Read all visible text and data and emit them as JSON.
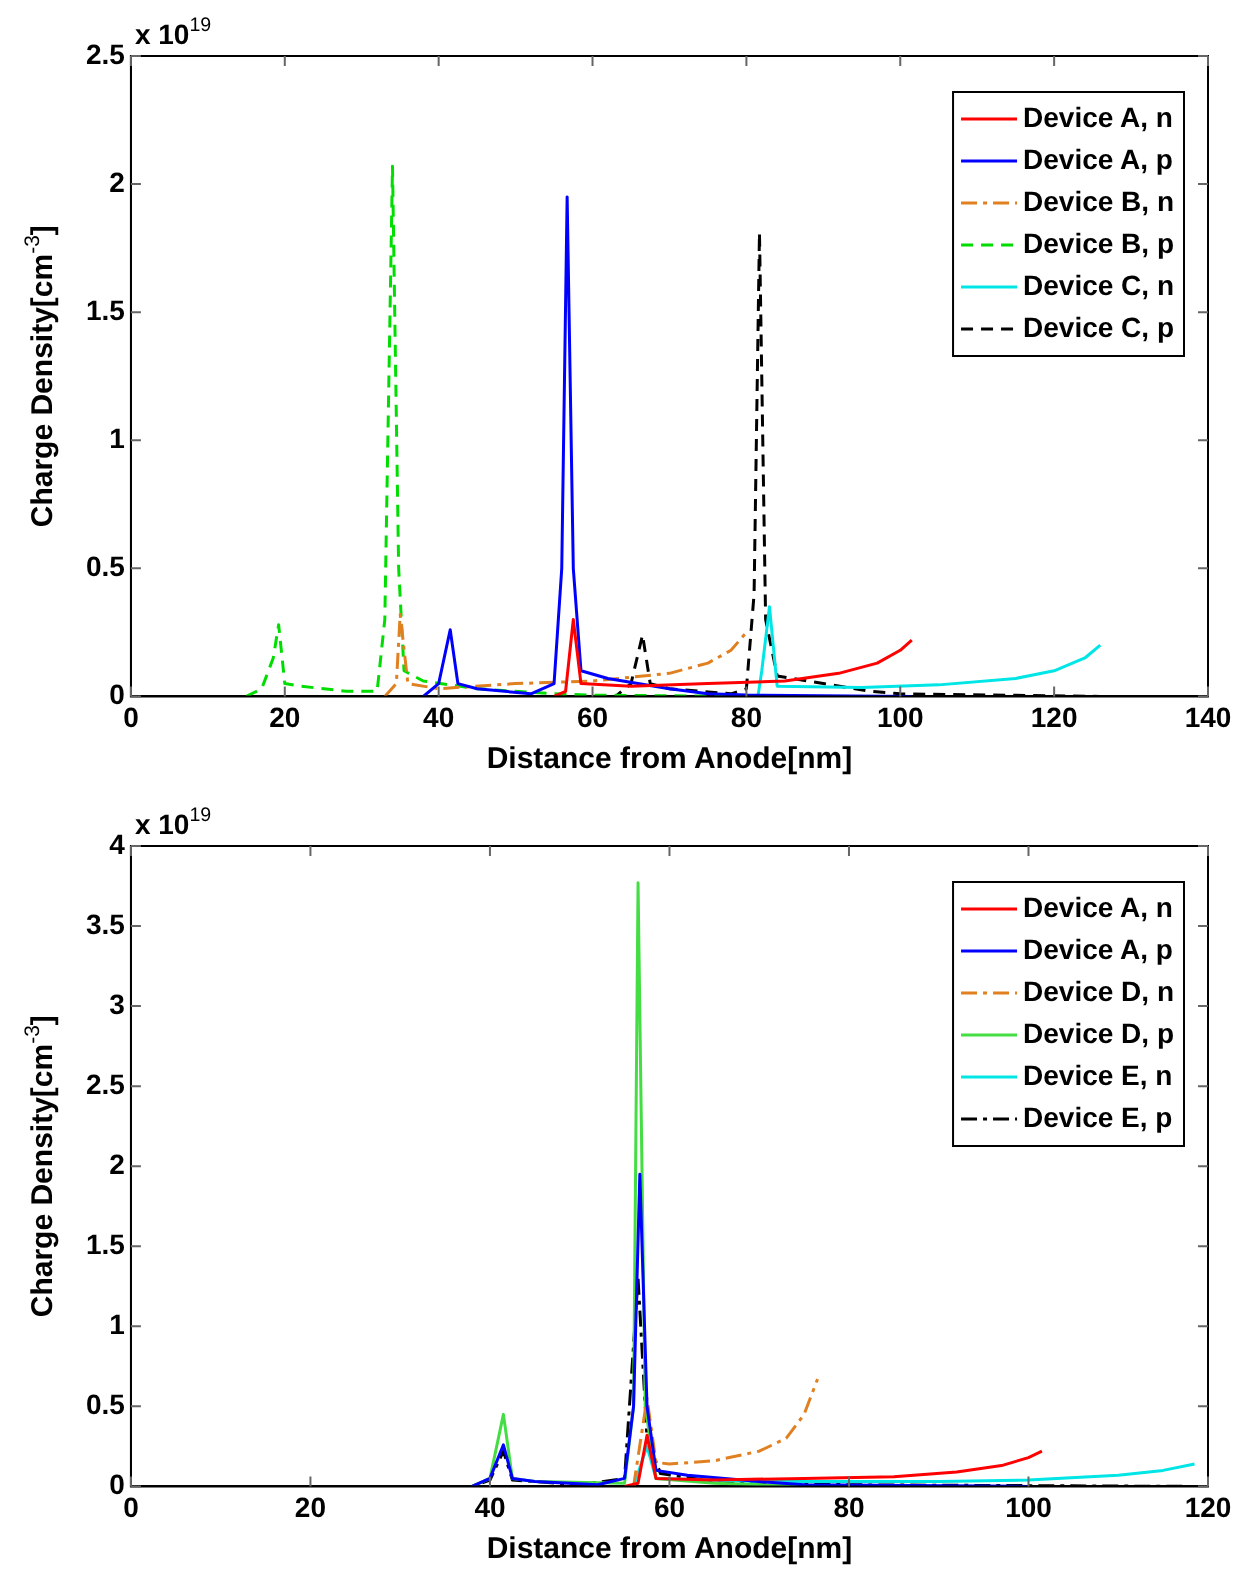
{
  "chart_data": [
    {
      "type": "line",
      "xlabel": "Distance from Anode[nm]",
      "ylabel": "Charge Density[cm$^{-3}$]",
      "annotations": [
        "x 10$^{19}$"
      ],
      "xlim": [
        0,
        140
      ],
      "xticks": [
        0,
        20,
        40,
        60,
        80,
        100,
        120,
        140
      ],
      "ylim": [
        0,
        2.5
      ],
      "yticks": [
        0,
        0.5,
        1,
        1.5,
        2,
        2.5
      ],
      "legend": "top right",
      "marker": "none",
      "series": [
        {
          "name": "Device A, n",
          "color": "#ff0000",
          "line_style": "solid",
          "x": [
            55,
            56.5,
            57.5,
            58.5,
            65,
            75,
            85,
            92,
            97,
            100,
            101.5
          ],
          "values": [
            0,
            0.02,
            0.3,
            0.05,
            0.04,
            0.05,
            0.06,
            0.09,
            0.13,
            0.18,
            0.22
          ]
        },
        {
          "name": "Device A, p",
          "color": "#0000ff",
          "line_style": "solid",
          "x": [
            38,
            40,
            41.5,
            42.5,
            45,
            52,
            55,
            56,
            56.7,
            57.5,
            58.5,
            62,
            70,
            75,
            80,
            101.5
          ],
          "values": [
            0,
            0.05,
            0.26,
            0.05,
            0.03,
            0.01,
            0.05,
            0.5,
            1.95,
            0.5,
            0.1,
            0.07,
            0.03,
            0.01,
            0.005,
            0
          ]
        },
        {
          "name": "Device B, n",
          "color": "#e08020",
          "line_style": "dashdot",
          "x": [
            33,
            34.5,
            35,
            36,
            40,
            50,
            60,
            70,
            75,
            78,
            80
          ],
          "values": [
            0,
            0.05,
            0.32,
            0.05,
            0.03,
            0.05,
            0.06,
            0.09,
            0.13,
            0.18,
            0.25
          ]
        },
        {
          "name": "Device B, p",
          "color": "#00dd00",
          "line_style": "dashed",
          "x": [
            15,
            17,
            18.5,
            19.2,
            20,
            22,
            28,
            32,
            33,
            34,
            34.8,
            35.5,
            38,
            45,
            55,
            60,
            80
          ],
          "values": [
            0,
            0.03,
            0.15,
            0.28,
            0.05,
            0.04,
            0.02,
            0.02,
            0.3,
            2.07,
            0.5,
            0.1,
            0.06,
            0.03,
            0.01,
            0.005,
            0
          ]
        },
        {
          "name": "Device C, n",
          "color": "#00e5e5",
          "line_style": "solid",
          "x": [
            81.5,
            82,
            83,
            84,
            95,
            105,
            115,
            120,
            124,
            126
          ],
          "values": [
            0,
            0.1,
            0.35,
            0.04,
            0.035,
            0.045,
            0.07,
            0.1,
            0.15,
            0.2
          ]
        },
        {
          "name": "Device C, p",
          "color": "#000000",
          "line_style": "dashed",
          "x": [
            0,
            63,
            65,
            66.5,
            67.5,
            70,
            78,
            80,
            81,
            81.7,
            82.5,
            84,
            90,
            96,
            100,
            126
          ],
          "values": [
            0,
            0,
            0.05,
            0.24,
            0.05,
            0.03,
            0.01,
            0.03,
            0.4,
            1.81,
            0.3,
            0.08,
            0.05,
            0.02,
            0.01,
            0
          ]
        }
      ]
    },
    {
      "type": "line",
      "xlabel": "Distance from Anode[nm]",
      "ylabel": "Charge Density[cm$^{-3}$]",
      "annotations": [
        "x 10$^{19}$"
      ],
      "xlim": [
        0,
        120
      ],
      "xticks": [
        0,
        20,
        40,
        60,
        80,
        100,
        120
      ],
      "ylim": [
        0,
        4
      ],
      "yticks": [
        0,
        0.5,
        1,
        1.5,
        2,
        2.5,
        3,
        3.5,
        4
      ],
      "legend": "top right",
      "marker": "none",
      "series": [
        {
          "name": "Device A, n",
          "color": "#ff0000",
          "line_style": "solid",
          "x": [
            55,
            56.5,
            57.5,
            58.5,
            65,
            75,
            85,
            92,
            97,
            100,
            101.5
          ],
          "values": [
            0,
            0.02,
            0.32,
            0.05,
            0.04,
            0.05,
            0.06,
            0.09,
            0.13,
            0.18,
            0.22
          ]
        },
        {
          "name": "Device A, p",
          "color": "#0000ff",
          "line_style": "solid",
          "x": [
            38,
            40,
            41.5,
            42.5,
            45,
            52,
            55,
            56,
            56.7,
            57.5,
            58.5,
            62,
            70,
            75,
            100
          ],
          "values": [
            0,
            0.05,
            0.26,
            0.05,
            0.03,
            0.01,
            0.05,
            0.5,
            1.95,
            0.5,
            0.1,
            0.07,
            0.03,
            0.01,
            0
          ]
        },
        {
          "name": "Device D, n",
          "color": "#e08020",
          "line_style": "dashdot",
          "x": [
            56,
            57.5,
            58.5,
            60,
            65,
            70,
            73,
            75,
            76.5
          ],
          "values": [
            0,
            0.55,
            0.15,
            0.14,
            0.16,
            0.22,
            0.3,
            0.45,
            0.67
          ]
        },
        {
          "name": "Device D, p",
          "color": "#44dd44",
          "line_style": "solid",
          "x": [
            38,
            40,
            41.5,
            42.5,
            45,
            55,
            56,
            56.5,
            57.3,
            58.5,
            65,
            76
          ],
          "values": [
            0,
            0.05,
            0.45,
            0.05,
            0.03,
            0.02,
            0.5,
            3.77,
            0.5,
            0.05,
            0.02,
            0
          ]
        },
        {
          "name": "Device E, n",
          "color": "#00e5e5",
          "line_style": "solid",
          "x": [
            56,
            57.5,
            58.5,
            70,
            90,
            100,
            110,
            115,
            118.5
          ],
          "values": [
            0,
            0.25,
            0.05,
            0.03,
            0.03,
            0.04,
            0.07,
            0.1,
            0.14
          ]
        },
        {
          "name": "Device E, p",
          "color": "#000000",
          "line_style": "dashdot",
          "x": [
            0,
            38,
            40,
            41.5,
            42.5,
            50,
            55,
            56.5,
            57.5,
            59,
            65,
            80,
            118
          ],
          "values": [
            0,
            0,
            0.04,
            0.22,
            0.04,
            0.01,
            0.05,
            1.3,
            0.3,
            0.08,
            0.03,
            0.01,
            0
          ]
        }
      ]
    }
  ]
}
